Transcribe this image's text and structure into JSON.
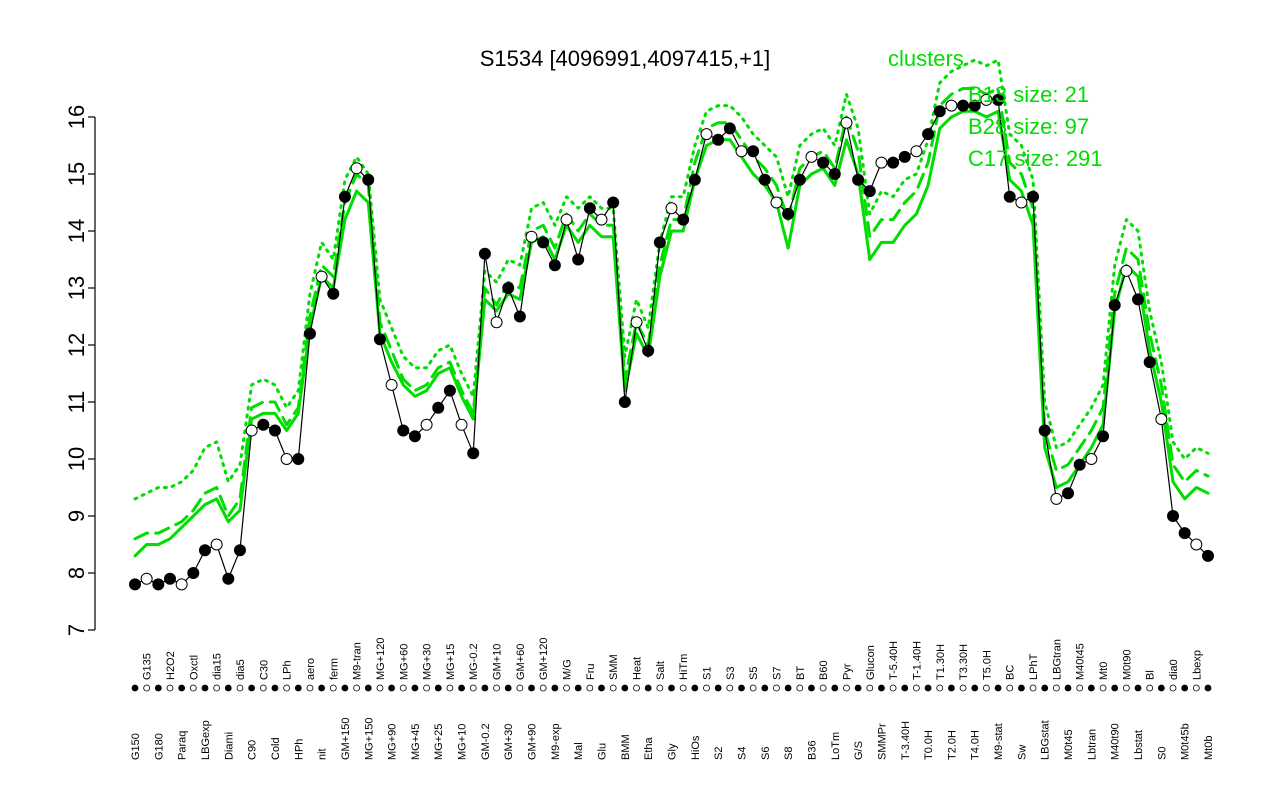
{
  "chart_data": {
    "type": "line",
    "title": "S1534 [4096991,4097415,+1]",
    "xlabel": "",
    "ylabel": "",
    "ylim": [
      7,
      16.5
    ],
    "yticks": [
      7,
      8,
      9,
      10,
      11,
      12,
      13,
      14,
      15,
      16
    ],
    "grid": false,
    "legend_position": "top-right",
    "legend": {
      "title": "clusters",
      "entries": [
        "B13 size: 21",
        "B28 size: 97",
        "C17 size: 291"
      ],
      "color": "#00dd00"
    },
    "colors": {
      "data": "#000000",
      "clusters": "#00dd00"
    },
    "categories": [
      "G150",
      "G135",
      "G180",
      "H2O2",
      "Paraq",
      "Oxctl",
      "LBGexp",
      "dia15",
      "Diami",
      "dia5",
      "C90",
      "C30",
      "Cold",
      "LPh",
      "HPh",
      "aero",
      "nit",
      "ferm",
      "GM+150",
      "M9-tran",
      "MG+150",
      "MG+120",
      "MG+90",
      "MG+60",
      "MG+45",
      "MG+30",
      "MG+25",
      "MG+15",
      "MG+10",
      "MG-0.2",
      "GM-0.2",
      "GM+10",
      "GM+30",
      "GM+60",
      "GM+90",
      "GM+120",
      "M9-exp",
      "M/G",
      "Mal",
      "Fru",
      "Glu",
      "SMM",
      "BMM",
      "Heat",
      "Etha",
      "Salt",
      "Gly",
      "HiTm",
      "HiOs",
      "S1",
      "S2",
      "S3",
      "S4",
      "S5",
      "S6",
      "S7",
      "S8",
      "BT",
      "B36",
      "B60",
      "LoTm",
      "Pyr",
      "G/S",
      "Glucon",
      "SMMPr",
      "T-5.40H",
      "T-3.40H",
      "T-1.40H",
      "T0.0H",
      "T1.30H",
      "T2.0H",
      "T3.30H",
      "T4.0H",
      "T5.0H",
      "M9-stat",
      "BC",
      "Sw",
      "LPhT",
      "LBGstat",
      "LBGtran",
      "M0t45",
      "M40t45",
      "Lbtran",
      "Mt0",
      "M40t90",
      "M0t90",
      "Lbstat",
      "Bl",
      "S0",
      "dia0",
      "M0t45b",
      "Lbexp",
      "Mt0b"
    ],
    "series": [
      {
        "values": [
          7.8,
          7.9,
          7.8,
          7.9,
          7.8,
          8.0,
          8.4,
          8.5,
          7.9,
          8.4,
          10.5,
          10.6,
          10.5,
          10.0,
          10.0,
          12.2,
          13.2,
          12.9,
          14.6,
          15.1,
          14.9,
          12.1,
          11.3,
          10.5,
          10.4,
          10.6,
          10.9,
          11.2,
          10.6,
          10.1,
          13.6,
          12.4,
          13.0,
          12.5,
          13.9,
          13.8,
          13.4,
          14.2,
          13.5,
          14.4,
          14.2,
          14.5,
          11.0,
          12.4,
          11.9,
          13.8,
          14.4,
          14.2,
          14.9,
          15.7,
          15.6,
          15.8,
          15.4,
          15.4,
          14.9,
          14.5,
          14.3,
          14.9,
          15.3,
          15.2,
          15.0,
          15.9,
          14.9,
          14.7,
          15.2,
          15.2,
          15.3,
          15.4,
          15.7,
          16.1,
          16.2,
          16.2,
          16.2,
          16.3,
          16.3,
          14.6,
          14.5,
          14.6,
          10.5,
          9.3,
          9.4,
          9.9,
          10.0,
          10.4,
          12.7,
          13.3,
          12.8,
          11.7,
          10.7,
          9.0,
          8.7,
          8.5,
          8.3
        ]
      },
      {
        "name": "B13 size: 21",
        "values": [
          9.3,
          9.4,
          9.5,
          9.5,
          9.6,
          9.8,
          10.2,
          10.3,
          9.6,
          9.9,
          11.3,
          11.4,
          11.3,
          10.9,
          11.2,
          12.9,
          13.8,
          13.5,
          14.9,
          15.3,
          15.0,
          12.8,
          12.3,
          11.8,
          11.6,
          11.6,
          11.9,
          12.0,
          11.5,
          11.1,
          13.3,
          13.1,
          13.5,
          13.4,
          14.4,
          14.5,
          14.1,
          14.6,
          14.4,
          14.6,
          14.4,
          14.4,
          11.8,
          12.8,
          12.3,
          13.8,
          14.6,
          14.6,
          15.5,
          16.1,
          16.2,
          16.2,
          16.0,
          15.7,
          15.5,
          15.3,
          14.6,
          15.5,
          15.7,
          15.8,
          15.5,
          16.4,
          15.8,
          14.3,
          14.7,
          14.6,
          14.9,
          15.0,
          15.6,
          16.6,
          16.8,
          16.9,
          17.0,
          16.9,
          17.0,
          15.7,
          15.5,
          14.9,
          11.0,
          10.2,
          10.3,
          10.6,
          10.9,
          11.3,
          13.4,
          14.2,
          14.0,
          12.6,
          11.7,
          10.3,
          10.0,
          10.2,
          10.1
        ]
      },
      {
        "name": "B28 size: 97",
        "values": [
          8.6,
          8.7,
          8.7,
          8.8,
          8.9,
          9.1,
          9.4,
          9.5,
          9.0,
          9.3,
          10.9,
          11.0,
          11.0,
          10.6,
          10.9,
          12.5,
          13.4,
          13.2,
          14.5,
          15.0,
          14.8,
          12.4,
          11.9,
          11.4,
          11.2,
          11.3,
          11.6,
          11.7,
          11.2,
          10.8,
          13.0,
          12.7,
          13.1,
          13.0,
          14.0,
          14.1,
          13.7,
          14.3,
          14.0,
          14.3,
          14.1,
          14.1,
          11.4,
          12.4,
          12.0,
          13.4,
          14.2,
          14.2,
          15.2,
          15.8,
          15.9,
          15.9,
          15.6,
          15.3,
          15.1,
          14.8,
          14.2,
          15.1,
          15.3,
          15.4,
          15.1,
          16.0,
          15.4,
          13.9,
          14.2,
          14.2,
          14.5,
          14.7,
          15.2,
          16.2,
          16.4,
          16.5,
          16.5,
          16.4,
          16.5,
          15.2,
          15.0,
          14.4,
          10.5,
          9.8,
          9.9,
          10.2,
          10.5,
          10.9,
          12.9,
          13.7,
          13.5,
          12.2,
          11.3,
          9.9,
          9.6,
          9.8,
          9.7
        ]
      },
      {
        "name": "C17 size: 291",
        "values": [
          8.3,
          8.5,
          8.5,
          8.6,
          8.8,
          9.0,
          9.2,
          9.3,
          8.9,
          9.1,
          10.7,
          10.8,
          10.8,
          10.5,
          10.8,
          12.3,
          13.2,
          13.0,
          14.2,
          14.7,
          14.5,
          12.2,
          11.7,
          11.3,
          11.1,
          11.2,
          11.5,
          11.6,
          11.1,
          10.7,
          12.8,
          12.6,
          12.9,
          12.8,
          13.8,
          13.9,
          13.5,
          14.1,
          13.8,
          14.1,
          13.9,
          13.9,
          11.2,
          12.2,
          11.8,
          13.2,
          14.0,
          14.0,
          14.9,
          15.5,
          15.6,
          15.6,
          15.3,
          15.0,
          14.8,
          14.5,
          13.7,
          14.8,
          15.0,
          15.1,
          14.8,
          15.6,
          15.0,
          13.5,
          13.8,
          13.8,
          14.1,
          14.3,
          14.8,
          15.8,
          16.0,
          16.1,
          16.1,
          16.0,
          16.1,
          14.9,
          14.7,
          14.1,
          10.2,
          9.5,
          9.6,
          9.9,
          10.2,
          10.6,
          12.6,
          13.4,
          13.2,
          11.9,
          11.0,
          9.6,
          9.3,
          9.5,
          9.4
        ]
      }
    ]
  }
}
